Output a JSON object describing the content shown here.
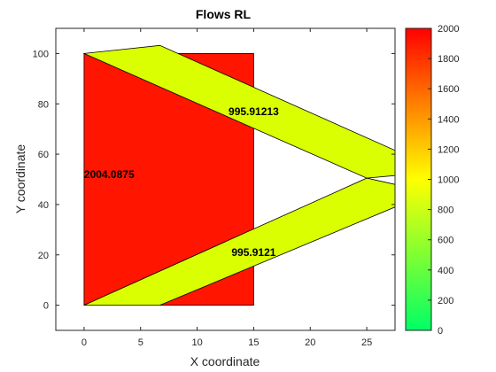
{
  "chart_data": {
    "type": "area",
    "title": "Flows RL",
    "xlabel": "X coordinate",
    "ylabel": "Y coordinate",
    "xlim": [
      -2.5,
      27.5
    ],
    "ylim": [
      -10,
      110
    ],
    "xticks": [
      0,
      5,
      10,
      15,
      20,
      25
    ],
    "yticks": [
      0,
      20,
      40,
      60,
      80,
      100
    ],
    "grid": false,
    "colors": {
      "high": "#ff0000",
      "mid": "#ffff00",
      "low": "#00ff00",
      "flow": "#ddff00"
    },
    "colorbar": {
      "min": 0,
      "max": 2000,
      "ticks": [
        0,
        200,
        400,
        600,
        800,
        1000,
        1200,
        1400,
        1600,
        1800,
        2000
      ]
    },
    "regions": [
      {
        "name": "block",
        "value": 2004.0875,
        "label": "2004.0875",
        "color": "#ff1500",
        "polygon": [
          [
            0,
            0
          ],
          [
            15,
            0
          ],
          [
            15,
            100
          ],
          [
            0,
            100
          ]
        ],
        "label_at": [
          0,
          52
        ]
      },
      {
        "name": "upper-flow",
        "value": 995.91213,
        "label": "995.91213",
        "color": "#d9ff00",
        "polygon": [
          [
            0,
            100
          ],
          [
            6.7,
            103.2
          ],
          [
            27.5,
            61.5
          ],
          [
            27.5,
            51.5
          ],
          [
            25,
            50.5
          ]
        ],
        "label_at": [
          15,
          77
        ]
      },
      {
        "name": "lower-flow",
        "value": 995.9121,
        "label": "995.9121",
        "color": "#d9ff00",
        "polygon": [
          [
            0,
            0
          ],
          [
            6.7,
            0
          ],
          [
            27.5,
            39
          ],
          [
            27.5,
            48
          ],
          [
            25,
            50.5
          ]
        ],
        "label_at": [
          15,
          21
        ]
      }
    ]
  }
}
